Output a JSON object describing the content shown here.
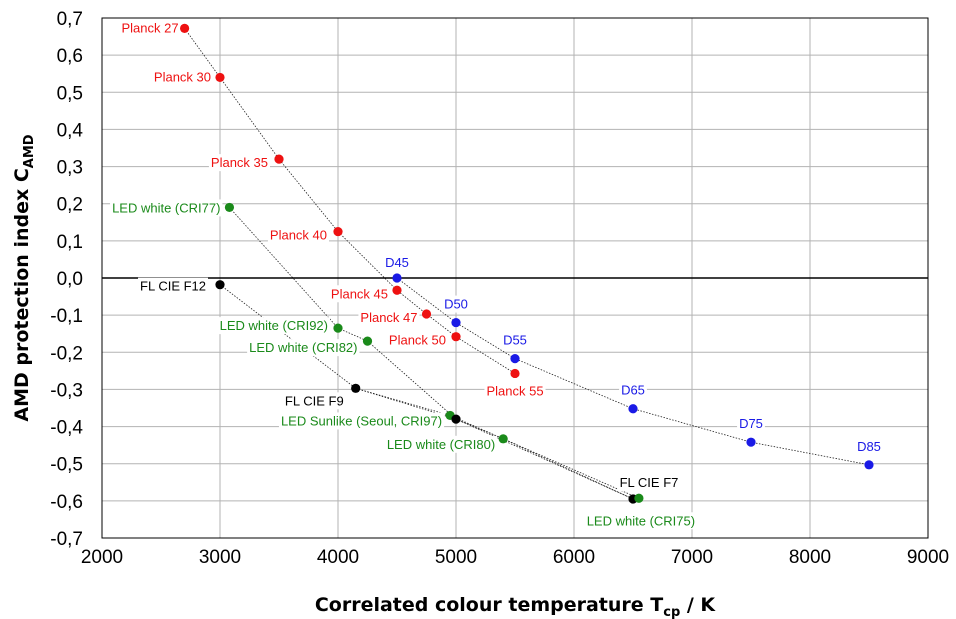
{
  "chart_data": {
    "type": "scatter",
    "xlabel": {
      "main": "Correlated colour temperature T",
      "sub": "cp",
      "suffix": " / K"
    },
    "ylabel": {
      "main": "AMD protection index C",
      "sub": "AMD"
    },
    "xlim": [
      2000,
      9000
    ],
    "ylim": [
      -0.7,
      0.7
    ],
    "x_ticks": [
      2000,
      3000,
      4000,
      5000,
      6000,
      7000,
      8000,
      9000
    ],
    "x_tick_labels": [
      "2000",
      "3000",
      "4000",
      "5000",
      "6000",
      "7000",
      "8000",
      "9000"
    ],
    "y_ticks": [
      0.7,
      0.6,
      0.5,
      0.4,
      0.3,
      0.2,
      0.1,
      0.0,
      -0.1,
      -0.2,
      -0.3,
      -0.4,
      -0.5,
      -0.6,
      -0.7
    ],
    "y_tick_labels": [
      "0,7",
      "0,6",
      "0,5",
      "0,4",
      "0,3",
      "0,2",
      "0,1",
      "0,0",
      "-0,1",
      "-0,2",
      "-0,3",
      "-0,4",
      "-0,5",
      "-0,6",
      "-0,7"
    ],
    "grid": true,
    "zero_line": true,
    "colors": {
      "planck": "#ee1111",
      "daylight": "#1a1ae6",
      "fluorescent": "#000000",
      "led": "#1a8a1a"
    },
    "series": [
      {
        "group": "planck",
        "color": "#ee1111",
        "points": [
          {
            "label": "Planck 27",
            "x": 2700,
            "y": 0.672
          },
          {
            "label": "Planck 30",
            "x": 3000,
            "y": 0.54
          },
          {
            "label": "Planck 35",
            "x": 3500,
            "y": 0.32
          },
          {
            "label": "Planck 40",
            "x": 4000,
            "y": 0.125
          },
          {
            "label": "Planck 45",
            "x": 4500,
            "y": -0.033
          },
          {
            "label": "Planck 47",
            "x": 4750,
            "y": -0.097
          },
          {
            "label": "Planck 50",
            "x": 5000,
            "y": -0.158
          },
          {
            "label": "Planck 55",
            "x": 5500,
            "y": -0.257
          }
        ]
      },
      {
        "group": "daylight",
        "color": "#1a1ae6",
        "points": [
          {
            "label": "D45",
            "x": 4500,
            "y": 0.0
          },
          {
            "label": "D50",
            "x": 5000,
            "y": -0.12
          },
          {
            "label": "D55",
            "x": 5500,
            "y": -0.217
          },
          {
            "label": "D65",
            "x": 6500,
            "y": -0.352
          },
          {
            "label": "D75",
            "x": 7500,
            "y": -0.442
          },
          {
            "label": "D85",
            "x": 8500,
            "y": -0.503
          }
        ]
      },
      {
        "group": "fluorescent",
        "color": "#000000",
        "points": [
          {
            "label": "FL CIE F12",
            "x": 3000,
            "y": -0.018
          },
          {
            "label": "FL CIE F9",
            "x": 4150,
            "y": -0.297
          },
          {
            "label": "FL CIE F7",
            "x": 6500,
            "y": -0.595
          }
        ]
      },
      {
        "group": "led",
        "color": "#1a8a1a",
        "points": [
          {
            "label": "LED white (CRI77)",
            "x": 3080,
            "y": 0.19
          },
          {
            "label": "LED white (CRI92)",
            "x": 4000,
            "y": -0.135
          },
          {
            "label": "LED white (CRI82)",
            "x": 4250,
            "y": -0.17
          },
          {
            "label": "LED Sunlike (Seoul, CRI97)",
            "x": 4950,
            "y": -0.37
          },
          {
            "label": "LED white (CRI80)",
            "x": 5400,
            "y": -0.433
          },
          {
            "label": "LED white (CRI75)",
            "x": 6550,
            "y": -0.593
          }
        ]
      },
      {
        "group": "extra",
        "color": "#000000",
        "points": [
          {
            "x": 5000,
            "y": -0.38
          }
        ]
      }
    ],
    "curves": [
      {
        "name": "planck-trend",
        "points": [
          [
            2700,
            0.672
          ],
          [
            3000,
            0.54
          ],
          [
            3500,
            0.32
          ],
          [
            4000,
            0.125
          ],
          [
            4500,
            -0.033
          ],
          [
            4750,
            -0.097
          ],
          [
            5000,
            -0.158
          ],
          [
            5500,
            -0.257
          ]
        ]
      },
      {
        "name": "daylight-trend",
        "points": [
          [
            4500,
            0.0
          ],
          [
            5000,
            -0.12
          ],
          [
            5500,
            -0.217
          ],
          [
            6500,
            -0.352
          ],
          [
            7500,
            -0.442
          ],
          [
            8500,
            -0.503
          ]
        ]
      },
      {
        "name": "f12-to-f7",
        "points": [
          [
            3000,
            -0.018
          ],
          [
            4150,
            -0.297
          ],
          [
            5000,
            -0.38
          ],
          [
            6500,
            -0.595
          ]
        ]
      },
      {
        "name": "f9-branch",
        "points": [
          [
            4150,
            -0.297
          ],
          [
            4950,
            -0.37
          ],
          [
            5400,
            -0.433
          ],
          [
            6550,
            -0.593
          ]
        ]
      },
      {
        "name": "cri77-branch",
        "points": [
          [
            3080,
            0.19
          ],
          [
            4000,
            -0.135
          ],
          [
            4250,
            -0.17
          ],
          [
            5000,
            -0.38
          ],
          [
            5400,
            -0.433
          ],
          [
            6500,
            -0.595
          ]
        ]
      }
    ]
  }
}
